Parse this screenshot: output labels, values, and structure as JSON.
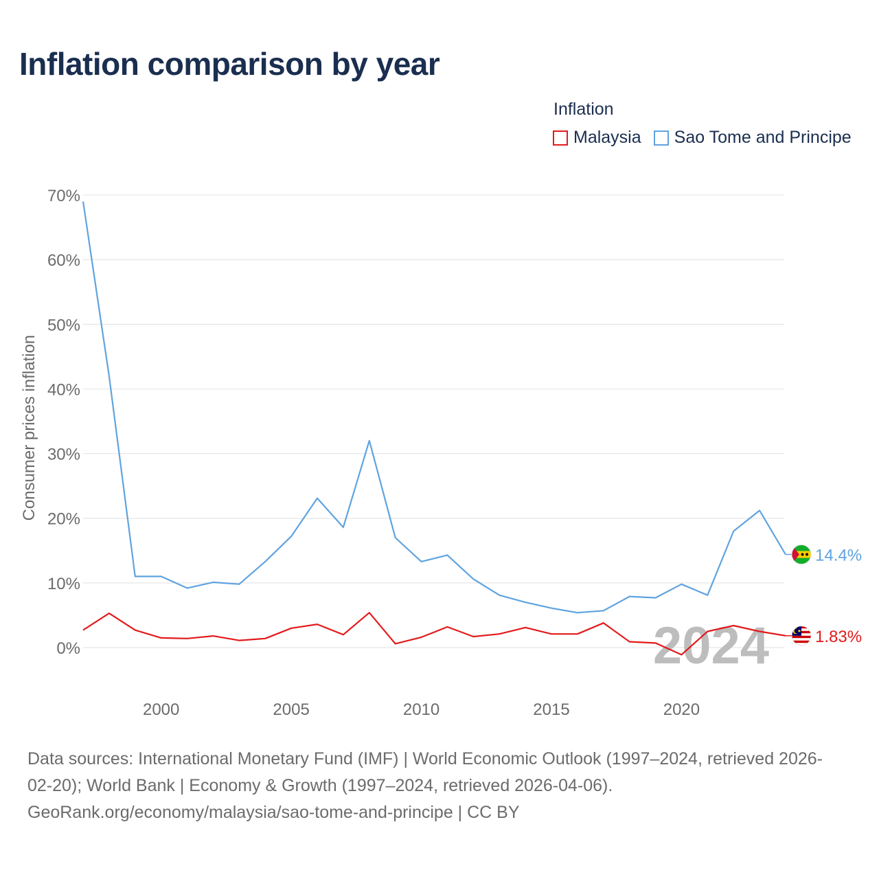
{
  "title": "Inflation comparison by year",
  "legend": {
    "title": "Inflation",
    "items": [
      {
        "label": "Malaysia",
        "color": "#e31a1c"
      },
      {
        "label": "Sao Tome and Principe",
        "color": "#5fa3e0"
      }
    ]
  },
  "source": {
    "line1": "Data sources: International Monetary Fund (IMF) | World Economic Outlook (1997–2024, retrieved 2026-",
    "line2": "02-20); World Bank | Economy & Growth (1997–2024, retrieved 2026-04-06).",
    "line3": "GeoRank.org/economy/malaysia/sao-tome-and-principe | CC BY"
  },
  "chart_data": {
    "type": "line",
    "ylabel": "Consumer prices inflation",
    "xlabel": "",
    "year_watermark": "2024",
    "x": [
      1997,
      1998,
      1999,
      2000,
      2001,
      2002,
      2003,
      2004,
      2005,
      2006,
      2007,
      2008,
      2009,
      2010,
      2011,
      2012,
      2013,
      2014,
      2015,
      2016,
      2017,
      2018,
      2019,
      2020,
      2021,
      2022,
      2023,
      2024
    ],
    "xlim": [
      1997,
      2024
    ],
    "ylim": [
      -7,
      71
    ],
    "yticks": [
      0,
      10,
      20,
      30,
      40,
      50,
      60,
      70
    ],
    "ytick_labels": [
      "0%",
      "10%",
      "20%",
      "30%",
      "40%",
      "50%",
      "60%",
      "70%"
    ],
    "xticks": [
      2000,
      2005,
      2010,
      2015,
      2020
    ],
    "xtick_labels": [
      "2000",
      "2005",
      "2010",
      "2015",
      "2020"
    ],
    "series": [
      {
        "name": "Malaysia",
        "color": "#e31a1c",
        "end_label": "1.83%",
        "values": [
          2.7,
          5.3,
          2.7,
          1.5,
          1.4,
          1.8,
          1.1,
          1.4,
          3.0,
          3.6,
          2.0,
          5.4,
          0.6,
          1.6,
          3.2,
          1.7,
          2.1,
          3.1,
          2.1,
          2.1,
          3.8,
          0.9,
          0.7,
          -1.1,
          2.5,
          3.4,
          2.5,
          1.83
        ]
      },
      {
        "name": "Sao Tome and Principe",
        "color": "#5fa3e0",
        "end_label": "14.4%",
        "values": [
          69.0,
          42.0,
          11.0,
          11.0,
          9.2,
          10.1,
          9.8,
          13.3,
          17.2,
          23.1,
          18.6,
          32.0,
          17.0,
          13.3,
          14.3,
          10.6,
          8.1,
          7.0,
          6.1,
          5.4,
          5.7,
          7.9,
          7.7,
          9.8,
          8.1,
          18.0,
          21.2,
          14.4
        ]
      }
    ]
  }
}
